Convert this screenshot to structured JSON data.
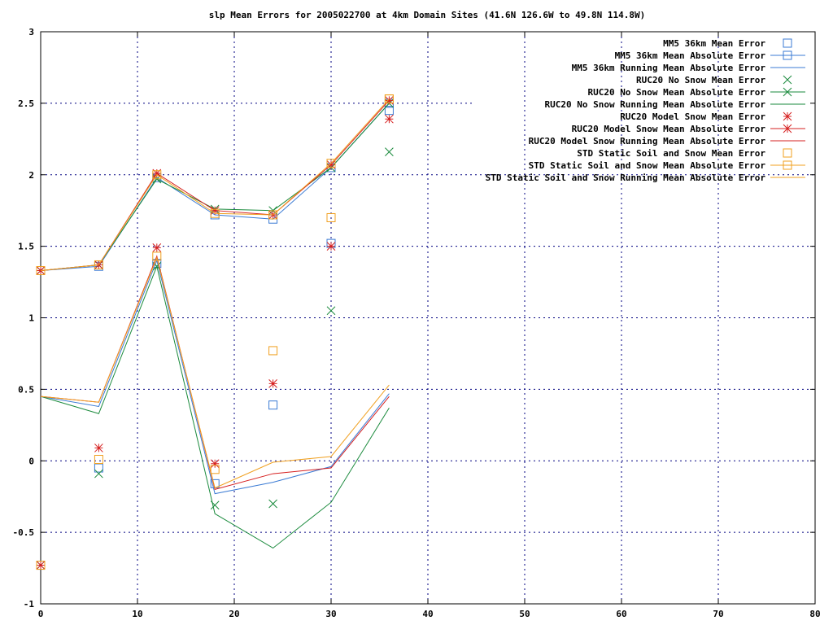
{
  "chart_data": {
    "type": "line",
    "title": "slp Mean Errors for 2005022700 at 4km Domain Sites (41.6N 126.6W to 49.8N 114.8W)",
    "xlabel": "",
    "ylabel": "",
    "xlim": [
      0,
      80
    ],
    "ylim": [
      -1,
      3
    ],
    "xticks": [
      "0",
      "10",
      "20",
      "30",
      "40",
      "50",
      "60",
      "70",
      "80"
    ],
    "yticks": [
      "-1",
      "-0.5",
      "0",
      "0.5",
      "1",
      "1.5",
      "2",
      "2.5",
      "3"
    ],
    "grid": true,
    "legend_position": "top-right",
    "x": [
      0,
      6,
      12,
      18,
      24,
      30,
      36
    ],
    "series": [
      {
        "name": "MM5 36km Mean Error",
        "style": "points",
        "marker": "square",
        "color": "#3b7bd4",
        "values": [
          -0.73,
          -0.05,
          1.38,
          -0.16,
          0.39,
          1.52,
          2.45
        ]
      },
      {
        "name": "MM5 36km Mean Absolute Error",
        "style": "linespoints",
        "marker": "square",
        "color": "#3b7bd4",
        "values": [
          1.33,
          1.36,
          1.98,
          1.72,
          1.69,
          2.05,
          2.5
        ]
      },
      {
        "name": "MM5 36km Running Mean Absolute Error",
        "style": "lines",
        "marker": "none",
        "color": "#3b7bd4",
        "values": [
          0.45,
          0.38,
          1.4,
          -0.23,
          -0.15,
          -0.04,
          0.47
        ]
      },
      {
        "name": "RUC20 No Snow Mean Error",
        "style": "points",
        "marker": "x",
        "color": "#1a8a3c",
        "values": [
          -0.73,
          -0.09,
          1.36,
          -0.31,
          -0.3,
          1.05,
          2.16
        ]
      },
      {
        "name": "RUC20 No Snow Mean Absolute Error",
        "style": "linespoints",
        "marker": "x",
        "color": "#1a8a3c",
        "values": [
          1.33,
          1.37,
          1.97,
          1.76,
          1.75,
          2.05,
          2.5
        ]
      },
      {
        "name": "RUC20 No Snow Running Mean Absolute Error",
        "style": "lines",
        "marker": "none",
        "color": "#1a8a3c",
        "values": [
          0.45,
          0.33,
          1.36,
          -0.37,
          -0.61,
          -0.29,
          0.37
        ]
      },
      {
        "name": "RUC20 Model Snow Mean Error",
        "style": "points",
        "marker": "star",
        "color": "#d62020",
        "values": [
          -0.73,
          0.09,
          1.49,
          -0.02,
          0.54,
          1.5,
          2.39
        ]
      },
      {
        "name": "RUC20 Model Snow Mean Absolute Error",
        "style": "linespoints",
        "marker": "star",
        "color": "#d62020",
        "values": [
          1.33,
          1.37,
          2.01,
          1.75,
          1.72,
          2.07,
          2.52
        ]
      },
      {
        "name": "RUC20 Model Snow Running Mean Absolute Error",
        "style": "lines",
        "marker": "none",
        "color": "#d62020",
        "values": [
          0.45,
          0.41,
          1.43,
          -0.2,
          -0.09,
          -0.05,
          0.45
        ]
      },
      {
        "name": "STD Static Soil and Snow Mean Error",
        "style": "points",
        "marker": "square",
        "color": "#f0a020",
        "values": [
          -0.73,
          0.01,
          1.43,
          -0.06,
          0.77,
          1.7,
          2.53
        ]
      },
      {
        "name": "STD Static Soil and Snow Mean Absolute Error",
        "style": "linespoints",
        "marker": "square",
        "color": "#f0a020",
        "values": [
          1.33,
          1.37,
          2.0,
          1.73,
          1.72,
          2.08,
          2.53
        ]
      },
      {
        "name": "STD Static Soil and Snow Running Mean Absolute Error",
        "style": "lines",
        "marker": "none",
        "color": "#f0a020",
        "values": [
          0.45,
          0.41,
          1.42,
          -0.19,
          -0.01,
          0.03,
          0.53
        ]
      }
    ]
  }
}
